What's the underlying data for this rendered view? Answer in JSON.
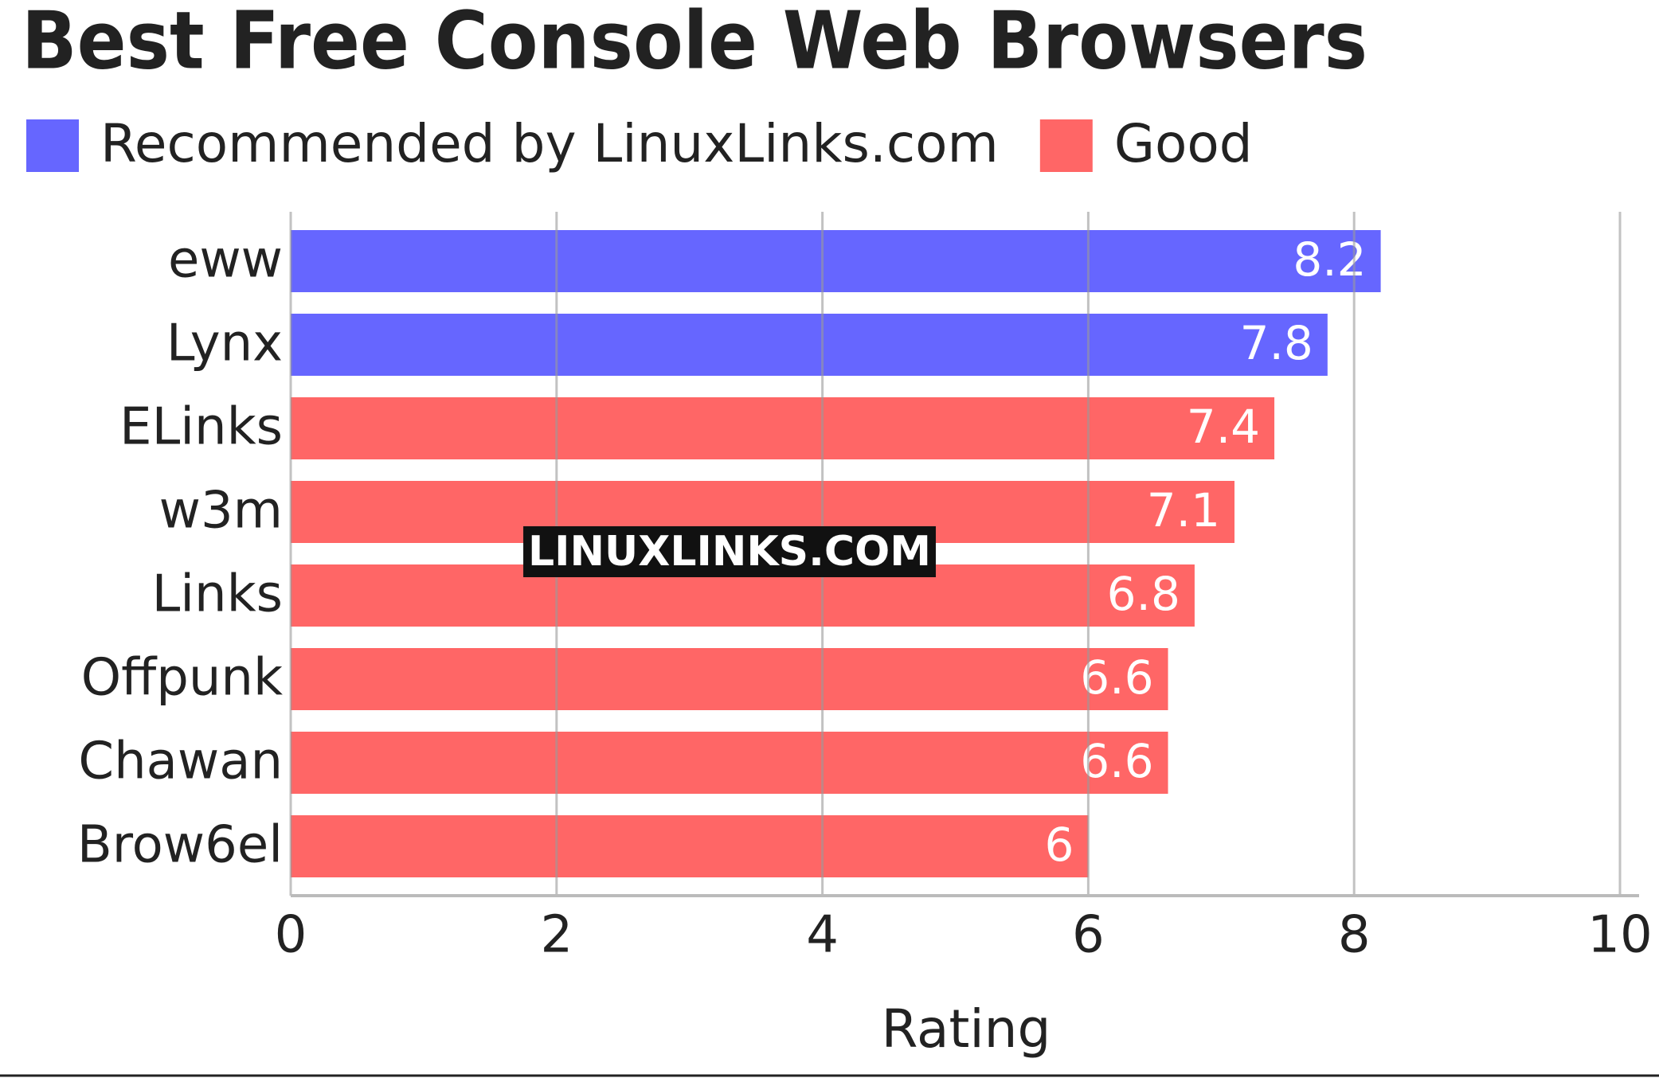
{
  "chart_data": {
    "type": "bar",
    "orientation": "horizontal",
    "title": "Best Free Console Web Browsers",
    "watermark": "LINUXLINKS.COM",
    "x_label": "Rating",
    "categories": [
      "eww",
      "Lynx",
      "ELinks",
      "w3m",
      "Links",
      "Offpunk",
      "Chawan",
      "Brow6el"
    ],
    "series": [
      {
        "name": "Recommended by LinuxLinks.com",
        "color": "#6666ff",
        "values": [
          8.2,
          7.8,
          null,
          null,
          null,
          null,
          null,
          null
        ]
      },
      {
        "name": "Good",
        "color": "#ff6666",
        "values": [
          null,
          null,
          7.4,
          7.1,
          6.8,
          6.6,
          6.6,
          6
        ]
      }
    ],
    "xlim": [
      0,
      10
    ],
    "xticks": [
      0,
      2,
      4,
      6,
      8,
      10
    ],
    "grid": true,
    "legend": "top-left"
  }
}
